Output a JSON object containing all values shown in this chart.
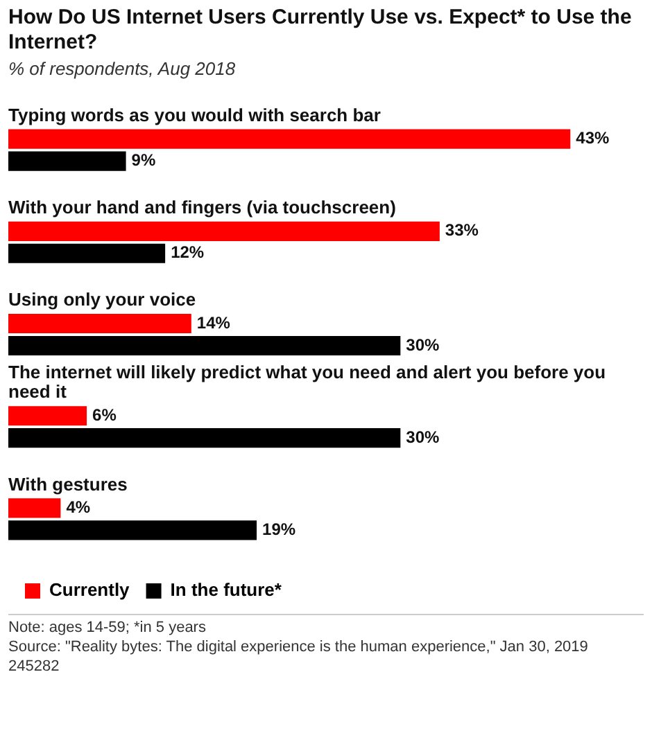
{
  "chart_data": {
    "type": "bar",
    "orientation": "horizontal",
    "title": "How Do US Internet Users Currently Use vs. Expect* to Use the Internet?",
    "subtitle": "% of respondents, Aug 2018",
    "categories": [
      "Typing words as you would with search bar",
      "With your hand and fingers (via touchscreen)",
      "Using only your voice",
      "The internet will likely predict what you need and alert you before you need it",
      "With gestures"
    ],
    "series": [
      {
        "name": "Currently",
        "color": "#ff0000",
        "values": [
          43,
          33,
          14,
          6,
          4
        ],
        "value_labels": [
          "43%",
          "33%",
          "14%",
          "6%",
          "4%"
        ]
      },
      {
        "name": "In the future*",
        "color": "#000000",
        "values": [
          9,
          12,
          30,
          30,
          19
        ],
        "value_labels": [
          "9%",
          "12%",
          "30%",
          "30%",
          "19%"
        ]
      }
    ],
    "legend": "bottom",
    "annotations": [
      "Note: ages 14-59; *in 5 years",
      "Source: \"Reality bytes: The digital experience is the human experience,\" Jan 30, 2019",
      "245282"
    ]
  }
}
